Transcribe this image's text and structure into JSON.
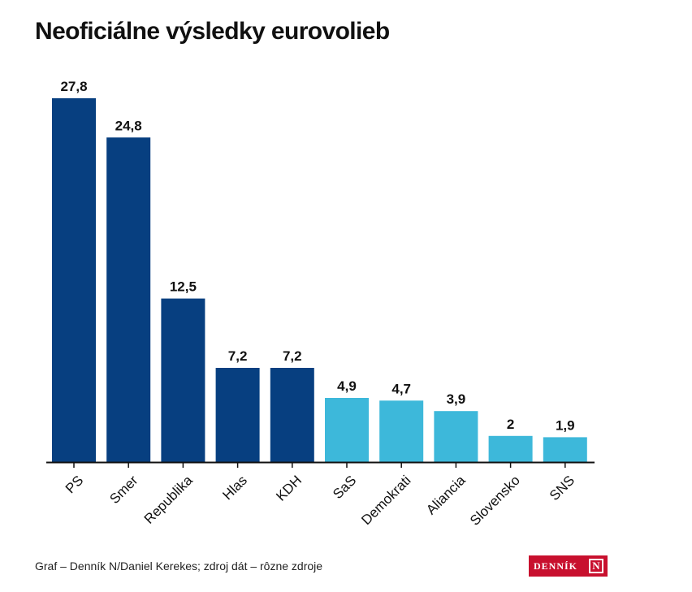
{
  "chart_data": {
    "type": "bar",
    "title": "Neoficiálne výsledky eurovolieb",
    "categories": [
      "PS",
      "Smer",
      "Republika",
      "Hlas",
      "KDH",
      "SaS",
      "Demokrati",
      "Aliancia",
      "Slovensko",
      "SNS"
    ],
    "values": [
      27.8,
      24.8,
      12.5,
      7.2,
      7.2,
      4.9,
      4.7,
      3.9,
      2,
      1.9
    ],
    "value_labels": [
      "27,8",
      "24,8",
      "12,5",
      "7,2",
      "7,2",
      "4,9",
      "4,7",
      "3,9",
      "2",
      "1,9"
    ],
    "ylim": [
      0,
      27.8
    ],
    "grid": false,
    "colors": [
      "#073f80",
      "#073f80",
      "#073f80",
      "#073f80",
      "#073f80",
      "#3db8da",
      "#3db8da",
      "#3db8da",
      "#3db8da",
      "#3db8da"
    ]
  },
  "footer": {
    "source": "Graf – Denník N/Daniel Kerekes; zdroj dát – rôzne zdroje"
  },
  "logo": {
    "text": "DENNÍK",
    "mark": "N",
    "color": "#c8102e"
  }
}
